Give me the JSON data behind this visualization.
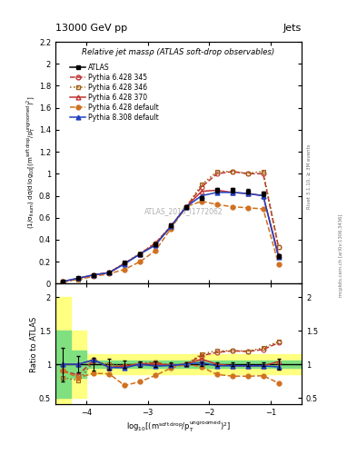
{
  "title_left": "13000 GeV pp",
  "title_right": "Jets",
  "plot_title": "Relative jet massρ (ATLAS soft-drop observables)",
  "watermark": "ATLAS_2019_I1772062",
  "right_label1": "Rivet 3.1.10, ≥ 3M events",
  "right_label2": "mcplots.cern.ch [arXiv:1306.3436]",
  "ylabel_main": "(1/σ$_{\\mathrm{fisum}}$) dσ/d log$_{10}$[(m$^{\\mathrm{soft\\,drop}}$/p$_{\\mathrm{T}}^{\\mathrm{ungroomed}}$)$^2$]",
  "ylabel_ratio": "Ratio to ATLAS",
  "xlabel": "log$_{10}$[(m$^{\\mathrm{soft\\,drop}}$/p$_{\\mathrm{T}}^{\\mathrm{ungroomed}}$)$^2$]",
  "xlim": [
    -4.5,
    -0.5
  ],
  "ylim_main": [
    0.0,
    2.2
  ],
  "ylim_ratio": [
    0.4,
    2.2
  ],
  "yticks_main": [
    0,
    0.2,
    0.4,
    0.6,
    0.8,
    1.0,
    1.2,
    1.4,
    1.6,
    1.8,
    2.0,
    2.2
  ],
  "yticks_ratio": [
    0.5,
    1.0,
    1.5,
    2.0
  ],
  "xticks": [
    -4,
    -3,
    -2,
    -1
  ],
  "x_data": [
    -4.375,
    -4.125,
    -3.875,
    -3.625,
    -3.375,
    -3.125,
    -2.875,
    -2.625,
    -2.375,
    -2.125,
    -1.875,
    -1.625,
    -1.375,
    -1.125,
    -0.875
  ],
  "atlas_y": [
    0.02,
    0.05,
    0.075,
    0.105,
    0.19,
    0.27,
    0.36,
    0.53,
    0.7,
    0.78,
    0.85,
    0.85,
    0.84,
    0.82,
    0.25
  ],
  "atlas_yerr": [
    0.005,
    0.006,
    0.007,
    0.008,
    0.01,
    0.012,
    0.015,
    0.015,
    0.015,
    0.02,
    0.02,
    0.02,
    0.02,
    0.02,
    0.02
  ],
  "p6_345_y": [
    0.018,
    0.042,
    0.08,
    0.1,
    0.185,
    0.27,
    0.37,
    0.52,
    0.7,
    0.88,
    1.0,
    1.02,
    1.0,
    1.0,
    0.33
  ],
  "p6_346_y": [
    0.016,
    0.038,
    0.078,
    0.105,
    0.185,
    0.275,
    0.37,
    0.52,
    0.7,
    0.9,
    1.02,
    1.02,
    1.005,
    1.02,
    0.335
  ],
  "p6_370_y": [
    0.02,
    0.05,
    0.08,
    0.1,
    0.185,
    0.27,
    0.36,
    0.52,
    0.7,
    0.84,
    0.85,
    0.83,
    0.82,
    0.8,
    0.26
  ],
  "p6_def_y": [
    0.018,
    0.04,
    0.065,
    0.09,
    0.13,
    0.2,
    0.3,
    0.5,
    0.7,
    0.75,
    0.72,
    0.7,
    0.69,
    0.68,
    0.18
  ],
  "p8_def_y": [
    0.02,
    0.05,
    0.08,
    0.1,
    0.18,
    0.27,
    0.35,
    0.52,
    0.7,
    0.8,
    0.83,
    0.83,
    0.82,
    0.8,
    0.24
  ],
  "color_p6_345": "#c03030",
  "color_p6_346": "#a06010",
  "color_p6_370": "#c03030",
  "color_p6_def": "#d07020",
  "color_p8_def": "#2040c0",
  "color_atlas": "#000000",
  "band_steps_x": [
    -4.5,
    -4.25,
    -4.25,
    -4.0,
    -4.0,
    -0.5
  ],
  "yellow_top_steps": [
    2.0,
    2.0,
    1.5,
    1.5,
    1.15,
    1.15
  ],
  "yellow_bot_steps": [
    0.3,
    0.3,
    0.5,
    0.5,
    0.85,
    0.85
  ],
  "green_top_steps": [
    1.5,
    1.5,
    1.2,
    1.2,
    1.05,
    1.05
  ],
  "green_bot_steps": [
    0.5,
    0.5,
    0.8,
    0.8,
    0.95,
    0.95
  ]
}
